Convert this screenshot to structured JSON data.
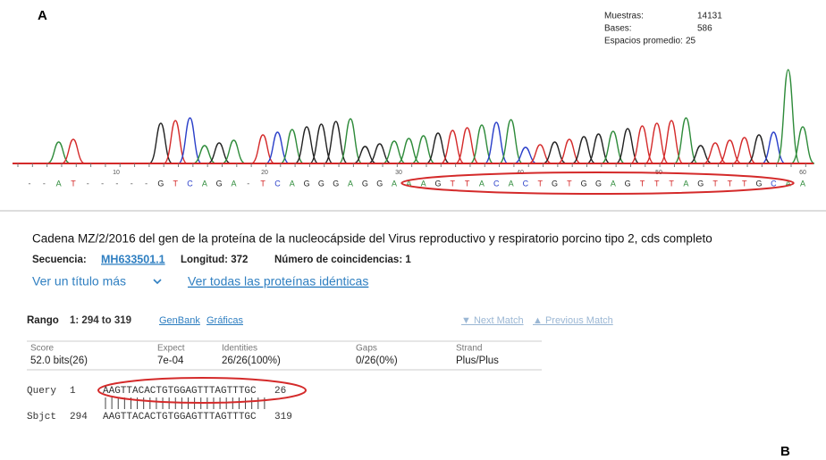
{
  "panel_labels": [
    "A",
    "B"
  ],
  "trace_info": [
    {
      "label": "Muestras:",
      "value": "14131"
    },
    {
      "label": "Bases:",
      "value": "586"
    },
    {
      "label": "Espacios promedio:",
      "value": "25"
    }
  ],
  "trace": {
    "positions": [
      "10",
      "20",
      "30",
      "40",
      "50",
      "60"
    ],
    "bases": [
      "-",
      "-",
      "A",
      "T",
      "-",
      "-",
      "-",
      "-",
      "-",
      "G",
      "T",
      "C",
      "A",
      "G",
      "A",
      "-",
      "T",
      "C",
      "A",
      "G",
      "G",
      "G",
      "A",
      "G",
      "G",
      "A",
      "A",
      "A",
      "G",
      "T",
      "T",
      "A",
      "C",
      "A",
      "C",
      "T",
      "G",
      "T",
      "G",
      "G",
      "A",
      "G",
      "T",
      "T",
      "T",
      "A",
      "G",
      "T",
      "T",
      "T",
      "G",
      "C",
      "A",
      "A"
    ],
    "base_colors": {
      "A": "#2e8b3a",
      "T": "#d42a2a",
      "G": "#222222",
      "C": "#2a3fc9",
      "-": "#555555"
    }
  },
  "blast": {
    "title": "Cadena MZ/2/2016 del gen de la proteína de la nucleocápside del Virus reproductivo y respiratorio porcino tipo 2, cds completo",
    "sequence_label": "Secuencia:",
    "accession": "MH633501.1",
    "length": "Longitud: 372",
    "matches": "Número de coincidencias: 1",
    "more_titles": "Ver un título más",
    "identical": "Ver todas las proteínas idénticas",
    "range_label": "Rango",
    "range": "1: 294 to 319",
    "genbank": "GenBank",
    "graphics": "Gráficas",
    "next_match": "▼ Next Match",
    "previous_match": "▲ Previous Match",
    "stats_headers": [
      "Score",
      "Expect",
      "Identities",
      "Gaps",
      "Strand"
    ],
    "stats_values": [
      "52.0 bits(26)",
      "7e-04",
      "26/26(100%)",
      "0/26(0%)",
      "Plus/Plus"
    ],
    "query": [
      "Query",
      "1",
      "AAGTTACACTGTGGAGTTTAGTTTGC",
      "26"
    ],
    "sbjct": [
      "Sbjct",
      "294",
      "AAGTTACACTGTGGAGTTTAGTTTGC",
      "319"
    ]
  }
}
